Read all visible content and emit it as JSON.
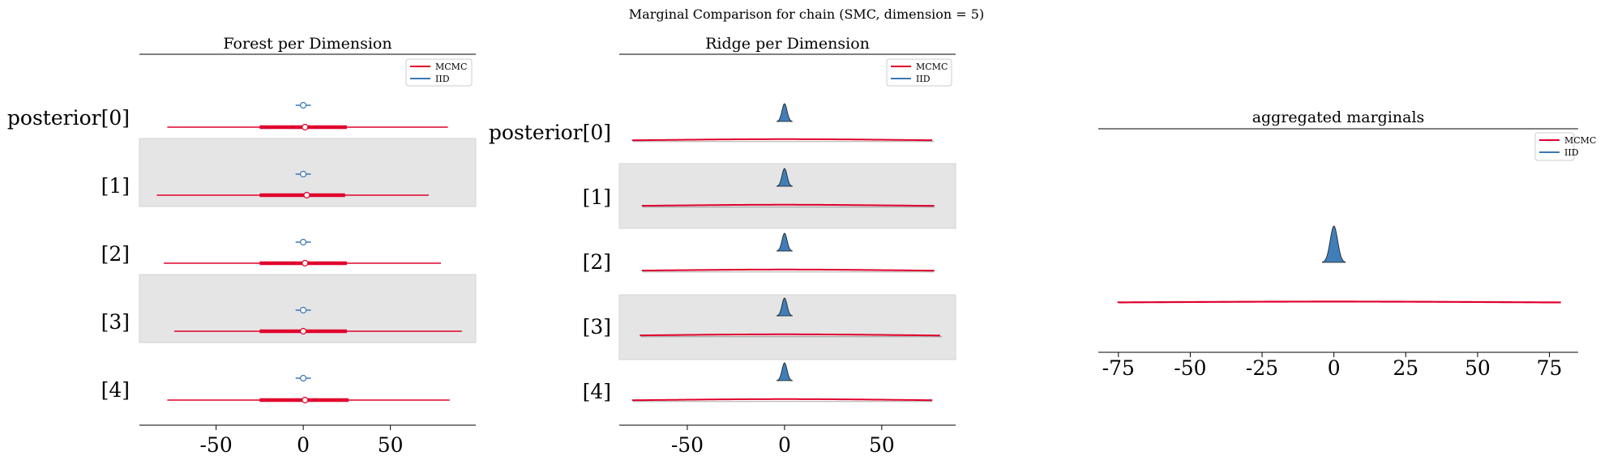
{
  "chart_data": {
    "suptitle": "Marginal Comparison for chain (SMC, dimension = 5)",
    "colors": {
      "mcmc": "#e0002c",
      "iid": "#3a78b5",
      "iid_fill": "#3f7eb8",
      "shade": "#e5e5e5"
    },
    "legend": {
      "mcmc": "MCMC",
      "iid": "IID"
    },
    "panels": [
      {
        "type": "forest",
        "title": "Forest per Dimension",
        "row_labels": [
          "posterior[0]",
          "[1]",
          "[2]",
          "[3]",
          "[4]"
        ],
        "xticks": [
          -50,
          0,
          50
        ],
        "xlim": [
          -94,
          99
        ],
        "legend_position": "top-right",
        "mcmc_rows": [
          {
            "low": -78,
            "q25": -25,
            "median": 1,
            "q75": 25,
            "high": 83
          },
          {
            "low": -84,
            "q25": -25,
            "median": 2,
            "q75": 24,
            "high": 72
          },
          {
            "low": -80,
            "q25": -25,
            "median": 1,
            "q75": 25,
            "high": 79
          },
          {
            "low": -74,
            "q25": -25,
            "median": 0,
            "q75": 25,
            "high": 91
          },
          {
            "low": -78,
            "q25": -25,
            "median": 1,
            "q75": 26,
            "high": 84
          }
        ],
        "iid_rows": [
          {
            "low": -3,
            "median": 0,
            "high": 3
          },
          {
            "low": -3,
            "median": 0,
            "high": 3
          },
          {
            "low": -3,
            "median": 0,
            "high": 3
          },
          {
            "low": -3,
            "median": 0,
            "high": 3
          },
          {
            "low": -3,
            "median": 0,
            "high": 3
          }
        ]
      },
      {
        "type": "ridge",
        "title": "Ridge per Dimension",
        "row_labels": [
          "posterior[0]",
          "[1]",
          "[2]",
          "[3]",
          "[4]"
        ],
        "xticks": [
          -50,
          0,
          50
        ],
        "xlim": [
          -85,
          88
        ],
        "legend_position": "top-right",
        "mcmc_rows": [
          {
            "low": -78,
            "high": 77
          },
          {
            "low": -73,
            "high": 77
          },
          {
            "low": -73,
            "high": 77
          },
          {
            "low": -74,
            "high": 81
          },
          {
            "low": -78,
            "high": 76
          }
        ],
        "iid_sd": 1.3
      },
      {
        "type": "aggregated",
        "title": "aggregated marginals",
        "xticks": [
          -75,
          -50,
          -25,
          0,
          25,
          50,
          75
        ],
        "xlim": [
          -82,
          85
        ],
        "legend_position": "top-right",
        "mcmc_range": [
          -75,
          79
        ],
        "iid_sd": 1.3
      }
    ]
  }
}
